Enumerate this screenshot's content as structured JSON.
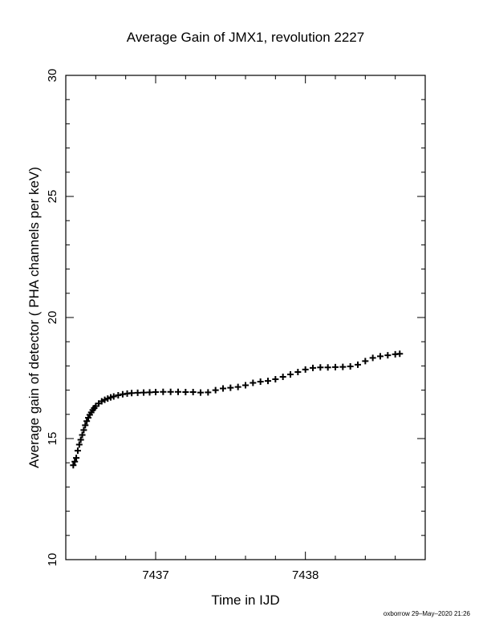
{
  "chart_data": {
    "type": "scatter",
    "title": "Average Gain of JMX1, revolution 2227",
    "xlabel": "Time in IJD",
    "ylabel": "Average gain of detector ( PHA channels per keV)",
    "xlim": [
      7436.4,
      7438.8
    ],
    "ylim": [
      10,
      30
    ],
    "x_ticks": [
      7437,
      7438
    ],
    "y_ticks": [
      10,
      15,
      20,
      25,
      30
    ],
    "grid": false,
    "marker": "+",
    "color": "#000000",
    "series": [
      {
        "x": [
          7436.45,
          7436.46,
          7436.47,
          7436.48,
          7436.49,
          7436.5,
          7436.51,
          7436.52,
          7436.53,
          7436.54,
          7436.55,
          7436.56,
          7436.57,
          7436.58,
          7436.59,
          7436.6,
          7436.62,
          7436.64,
          7436.66,
          7436.68,
          7436.7,
          7436.72,
          7436.75,
          7436.78,
          7436.81,
          7436.84,
          7436.88,
          7436.92,
          7436.96,
          7437.0,
          7437.05,
          7437.1,
          7437.15,
          7437.2,
          7437.25,
          7437.3,
          7437.35,
          7437.4,
          7437.45,
          7437.5,
          7437.55,
          7437.6,
          7437.65,
          7437.7,
          7437.75,
          7437.8,
          7437.85,
          7437.9,
          7437.95,
          7438.0,
          7438.05,
          7438.1,
          7438.15,
          7438.2,
          7438.25,
          7438.3,
          7438.35,
          7438.4,
          7438.45,
          7438.5,
          7438.55,
          7438.6,
          7438.63
        ],
        "y": [
          13.9,
          14.05,
          14.2,
          14.5,
          14.75,
          14.95,
          15.15,
          15.35,
          15.55,
          15.72,
          15.86,
          15.98,
          16.08,
          16.18,
          16.26,
          16.34,
          16.45,
          16.54,
          16.6,
          16.65,
          16.7,
          16.74,
          16.79,
          16.83,
          16.86,
          16.88,
          16.89,
          16.9,
          16.91,
          16.92,
          16.93,
          16.93,
          16.93,
          16.92,
          16.92,
          16.9,
          16.91,
          17.0,
          17.07,
          17.1,
          17.13,
          17.2,
          17.3,
          17.35,
          17.38,
          17.45,
          17.55,
          17.65,
          17.75,
          17.85,
          17.92,
          17.94,
          17.94,
          17.95,
          17.96,
          17.98,
          18.05,
          18.2,
          18.33,
          18.4,
          18.44,
          18.48,
          18.5
        ]
      }
    ]
  },
  "footer": "oxborrow 29–May–2020 21:26"
}
